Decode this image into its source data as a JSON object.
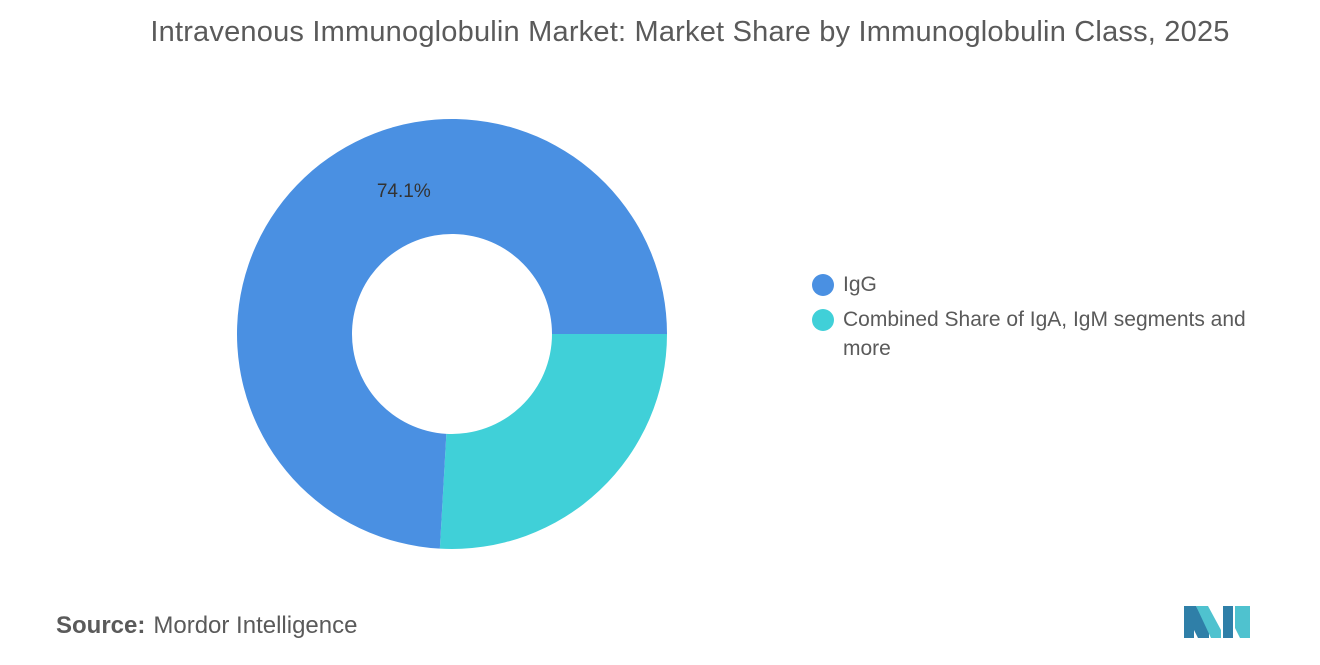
{
  "title": "Intravenous Immunoglobulin Market: Market Share by Immunoglobulin Class, 2025",
  "source": {
    "label": "Source:",
    "name": "Mordor Intelligence"
  },
  "colors": {
    "igg": "#4a90e2",
    "combined": "#40d0d8"
  },
  "chart_data": {
    "type": "pie",
    "variant": "donut",
    "title": "Intravenous Immunoglobulin Market: Market Share by Immunoglobulin Class, 2025",
    "legend_position": "right",
    "series": [
      {
        "name": "IgG",
        "value": 74.1,
        "label": "74.1%",
        "color": "#4a90e2"
      },
      {
        "name": "Combined Share of IgA, IgM segments and more",
        "value": 25.9,
        "label": "",
        "color": "#40d0d8"
      }
    ]
  }
}
